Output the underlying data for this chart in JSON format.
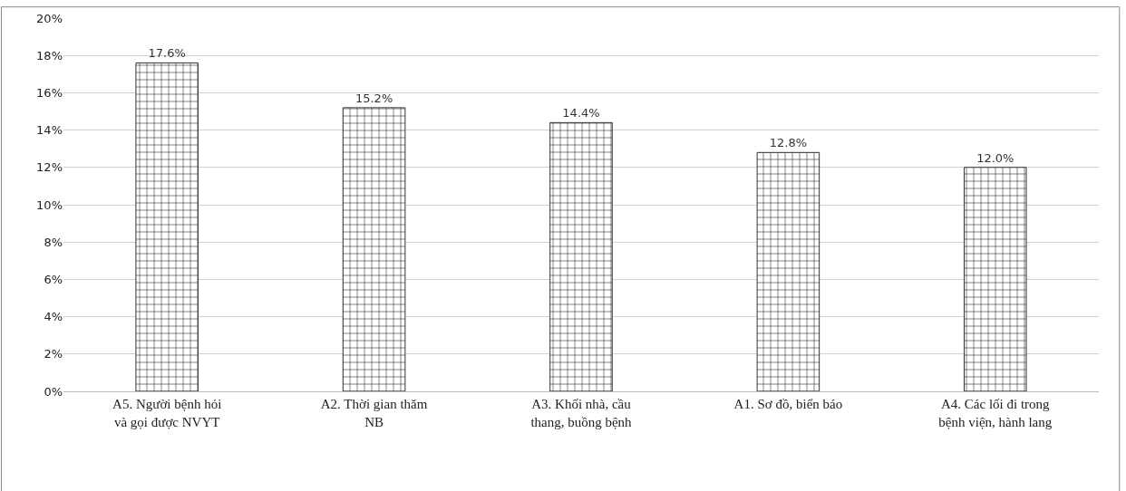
{
  "chart_data": {
    "type": "bar",
    "categories": [
      "A5. Người bệnh hỏi và gọi được NVYT",
      "A2. Thời gian thăm NB",
      "A3. Khối nhà, cầu thang, buồng bệnh",
      "A1. Sơ đồ, biển báo",
      "A4. Các lối đi trong bệnh viện, hành lang"
    ],
    "values": [
      17.6,
      15.2,
      14.4,
      12.8,
      12.0
    ],
    "value_labels": [
      "17.6%",
      "15.2%",
      "14.4%",
      "12.8%",
      "12.0%"
    ],
    "color": "#333333",
    "ylim": [
      0,
      20
    ],
    "yticks": [
      {
        "value": 0,
        "label": "0%"
      },
      {
        "value": 2,
        "label": "2%"
      },
      {
        "value": 4,
        "label": "4%"
      },
      {
        "value": 6,
        "label": "6%"
      },
      {
        "value": 8,
        "label": "8%"
      },
      {
        "value": 10,
        "label": "10%"
      },
      {
        "value": 12,
        "label": "12%"
      },
      {
        "value": 14,
        "label": "14%"
      },
      {
        "value": 16,
        "label": "16%"
      },
      {
        "value": 18,
        "label": "18%"
      },
      {
        "value": 20,
        "label": "20%"
      }
    ],
    "grid": "y"
  }
}
